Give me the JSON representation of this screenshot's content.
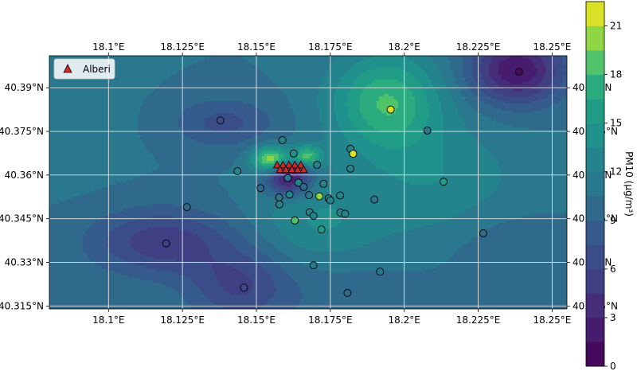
{
  "chart_data": {
    "type": "heatmap",
    "title": "",
    "colorbar_label": "PM10 (μg/m³)",
    "colorbar_ticks": [
      0,
      3,
      6,
      9,
      12,
      15,
      18,
      21
    ],
    "colorbar_range": [
      0,
      22.5
    ],
    "colormap": "viridis",
    "xlim": [
      18.08,
      18.255
    ],
    "ylim": [
      40.314,
      40.401
    ],
    "grid": true,
    "legend_position": "top-left",
    "x_ticks": [
      {
        "v": 18.1,
        "label": "18.1°E"
      },
      {
        "v": 18.125,
        "label": "18.125°E"
      },
      {
        "v": 18.15,
        "label": "18.15°E"
      },
      {
        "v": 18.175,
        "label": "18.175°E"
      },
      {
        "v": 18.2,
        "label": "18.2°E"
      },
      {
        "v": 18.225,
        "label": "18.225°E"
      },
      {
        "v": 18.25,
        "label": "18.25°E"
      }
    ],
    "y_ticks": [
      {
        "v": 40.315,
        "label": "40.315°N"
      },
      {
        "v": 40.33,
        "label": "40.33°N"
      },
      {
        "v": 40.345,
        "label": "40.345°N"
      },
      {
        "v": 40.36,
        "label": "40.36°N"
      },
      {
        "v": 40.375,
        "label": "40.375°N"
      },
      {
        "v": 40.39,
        "label": "40.39°N"
      }
    ],
    "stations": [
      {
        "lon": 18.1378,
        "lat": 40.3788,
        "pm10": 7
      },
      {
        "lon": 18.1195,
        "lat": 40.3365,
        "pm10": 5
      },
      {
        "lon": 18.1265,
        "lat": 40.349,
        "pm10": 9
      },
      {
        "lon": 18.1458,
        "lat": 40.3213,
        "pm10": 6
      },
      {
        "lon": 18.1436,
        "lat": 40.3613,
        "pm10": 13
      },
      {
        "lon": 18.1514,
        "lat": 40.3555,
        "pm10": 10
      },
      {
        "lon": 18.1577,
        "lat": 40.3523,
        "pm10": 11
      },
      {
        "lon": 18.1578,
        "lat": 40.3499,
        "pm10": 13
      },
      {
        "lon": 18.1588,
        "lat": 40.372,
        "pm10": 12
      },
      {
        "lon": 18.1606,
        "lat": 40.359,
        "pm10": 11
      },
      {
        "lon": 18.1612,
        "lat": 40.3533,
        "pm10": 12
      },
      {
        "lon": 18.1626,
        "lat": 40.3674,
        "pm10": 14
      },
      {
        "lon": 18.163,
        "lat": 40.3444,
        "pm10": 19
      },
      {
        "lon": 18.1642,
        "lat": 40.3574,
        "pm10": 13
      },
      {
        "lon": 18.166,
        "lat": 40.3559,
        "pm10": 9
      },
      {
        "lon": 18.1678,
        "lat": 40.3531,
        "pm10": 11
      },
      {
        "lon": 18.168,
        "lat": 40.3472,
        "pm10": 13
      },
      {
        "lon": 18.1693,
        "lat": 40.346,
        "pm10": 12
      },
      {
        "lon": 18.1705,
        "lat": 40.3635,
        "pm10": 12
      },
      {
        "lon": 18.1713,
        "lat": 40.3527,
        "pm10": 20
      },
      {
        "lon": 18.172,
        "lat": 40.3413,
        "pm10": 16
      },
      {
        "lon": 18.1727,
        "lat": 40.357,
        "pm10": 12
      },
      {
        "lon": 18.1744,
        "lat": 40.352,
        "pm10": 13
      },
      {
        "lon": 18.175,
        "lat": 40.3513,
        "pm10": 13
      },
      {
        "lon": 18.1783,
        "lat": 40.353,
        "pm10": 12
      },
      {
        "lon": 18.1784,
        "lat": 40.3471,
        "pm10": 13
      },
      {
        "lon": 18.18,
        "lat": 40.3467,
        "pm10": 13
      },
      {
        "lon": 18.1818,
        "lat": 40.369,
        "pm10": 13
      },
      {
        "lon": 18.1818,
        "lat": 40.3622,
        "pm10": 13
      },
      {
        "lon": 18.1827,
        "lat": 40.3673,
        "pm10": 21
      },
      {
        "lon": 18.1693,
        "lat": 40.329,
        "pm10": 11
      },
      {
        "lon": 18.1808,
        "lat": 40.3195,
        "pm10": 10
      },
      {
        "lon": 18.1899,
        "lat": 40.3516,
        "pm10": 11
      },
      {
        "lon": 18.1918,
        "lat": 40.3268,
        "pm10": 11
      },
      {
        "lon": 18.1954,
        "lat": 40.3825,
        "pm10": 21
      },
      {
        "lon": 18.2078,
        "lat": 40.3753,
        "pm10": 11
      },
      {
        "lon": 18.2133,
        "lat": 40.3577,
        "pm10": 15
      },
      {
        "lon": 18.2267,
        "lat": 40.34,
        "pm10": 10
      },
      {
        "lon": 18.2388,
        "lat": 40.3955,
        "pm10": 1
      }
    ],
    "alberi": [
      {
        "lon": 18.157,
        "lat": 40.3634
      },
      {
        "lon": 18.159,
        "lat": 40.3634
      },
      {
        "lon": 18.161,
        "lat": 40.3634
      },
      {
        "lon": 18.163,
        "lat": 40.3634
      },
      {
        "lon": 18.165,
        "lat": 40.3634
      },
      {
        "lon": 18.158,
        "lat": 40.3618
      },
      {
        "lon": 18.16,
        "lat": 40.3618
      },
      {
        "lon": 18.162,
        "lat": 40.3618
      },
      {
        "lon": 18.164,
        "lat": 40.3618
      },
      {
        "lon": 18.166,
        "lat": 40.3618
      }
    ],
    "legend": [
      {
        "label": "Alberi",
        "marker": "triangle",
        "color": "#d62728"
      }
    ],
    "field": {
      "base": 10.5,
      "bumps": [
        {
          "x": 18.194,
          "y": 40.385,
          "sx": 0.013,
          "sy": 0.012,
          "a": 7.5
        },
        {
          "x": 18.155,
          "y": 40.3655,
          "sx": 0.0045,
          "sy": 0.003,
          "a": 10.5
        },
        {
          "x": 18.167,
          "y": 40.3665,
          "sx": 0.0035,
          "sy": 0.0025,
          "a": 8
        },
        {
          "x": 18.161,
          "y": 40.359,
          "sx": 0.005,
          "sy": 0.004,
          "a": -9.5
        },
        {
          "x": 18.139,
          "y": 40.378,
          "sx": 0.012,
          "sy": 0.006,
          "a": -3.5
        },
        {
          "x": 18.118,
          "y": 40.337,
          "sx": 0.017,
          "sy": 0.008,
          "a": -5.5
        },
        {
          "x": 18.144,
          "y": 40.322,
          "sx": 0.012,
          "sy": 0.009,
          "a": -4.5
        },
        {
          "x": 18.238,
          "y": 40.396,
          "sx": 0.011,
          "sy": 0.008,
          "a": -9
        },
        {
          "x": 18.17,
          "y": 40.344,
          "sx": 0.015,
          "sy": 0.01,
          "a": 3
        },
        {
          "x": 18.212,
          "y": 40.357,
          "sx": 0.02,
          "sy": 0.014,
          "a": 2.8
        },
        {
          "x": 18.232,
          "y": 40.338,
          "sx": 0.014,
          "sy": 0.01,
          "a": -1.2
        },
        {
          "x": 18.18,
          "y": 40.318,
          "sx": 0.02,
          "sy": 0.008,
          "a": -1
        },
        {
          "x": 18.088,
          "y": 40.38,
          "sx": 0.015,
          "sy": 0.02,
          "a": 0.5
        }
      ]
    }
  }
}
